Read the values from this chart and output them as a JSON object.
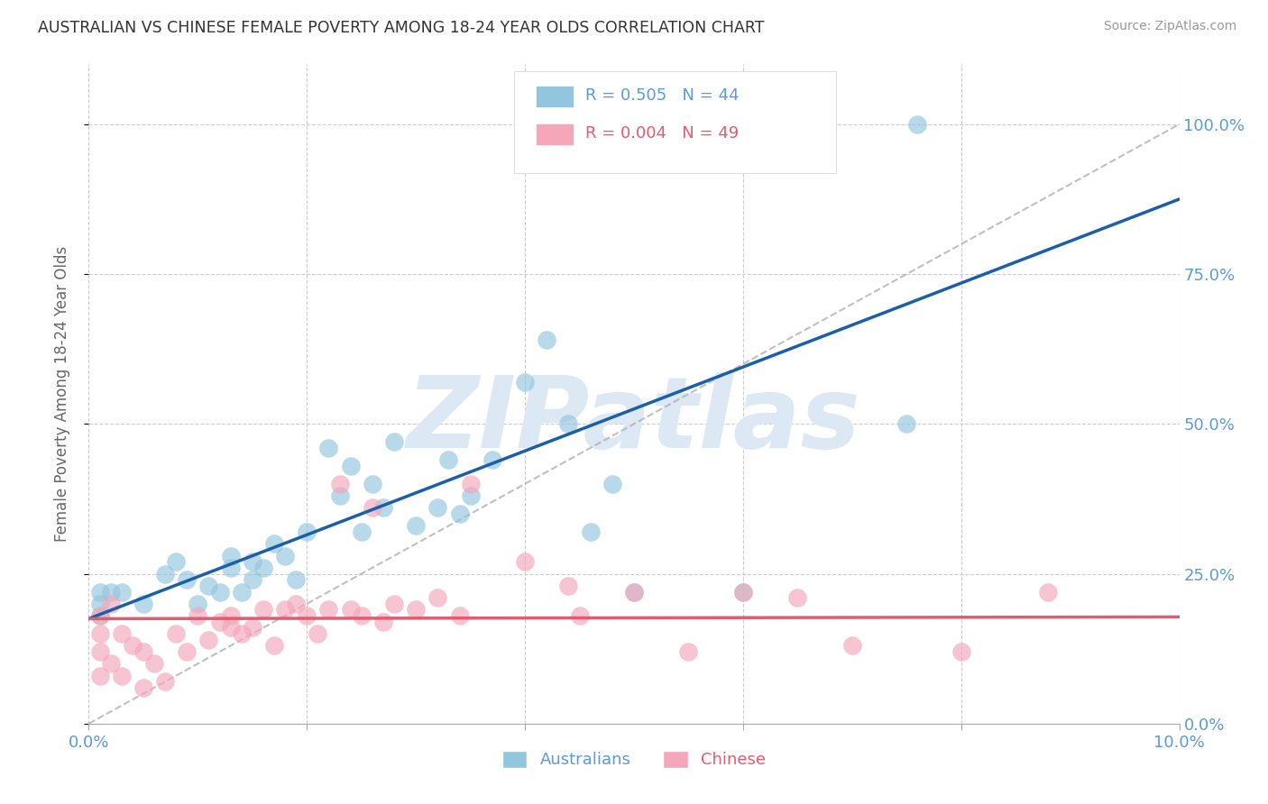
{
  "title": "AUSTRALIAN VS CHINESE FEMALE POVERTY AMONG 18-24 YEAR OLDS CORRELATION CHART",
  "source": "Source: ZipAtlas.com",
  "ylabel": "Female Poverty Among 18-24 Year Olds",
  "xlim": [
    0.0,
    0.1
  ],
  "ylim": [
    0.0,
    1.1
  ],
  "yticks_right": [
    0.0,
    0.25,
    0.5,
    0.75,
    1.0
  ],
  "ytick_labels_right": [
    "0.0%",
    "25.0%",
    "50.0%",
    "75.0%",
    "100.0%"
  ],
  "xtick_labels": [
    "0.0%",
    "",
    "",
    "",
    "",
    "10.0%"
  ],
  "title_color": "#333333",
  "source_color": "#999999",
  "axis_color": "#5b9bd5",
  "grid_color": "#cccccc",
  "watermark_text": "ZIPatlas",
  "watermark_color": "#dde8f5",
  "australian_color": "#92c5de",
  "chinese_color": "#f4a7b9",
  "trend_au_color": "#1a5fa8",
  "trend_cn_color": "#e05c6e",
  "ref_line_color": "#b0b0b0",
  "au_trend_x0": 0.0,
  "au_trend_y0": 0.175,
  "au_trend_x1": 0.1,
  "au_trend_y1": 0.875,
  "cn_trend_x0": 0.0,
  "cn_trend_y0": 0.175,
  "cn_trend_x1": 0.1,
  "cn_trend_y1": 0.178,
  "au_x": [
    0.001,
    0.001,
    0.001,
    0.002,
    0.003,
    0.005,
    0.007,
    0.008,
    0.009,
    0.01,
    0.011,
    0.012,
    0.013,
    0.013,
    0.014,
    0.015,
    0.015,
    0.016,
    0.017,
    0.018,
    0.019,
    0.02,
    0.022,
    0.023,
    0.024,
    0.025,
    0.026,
    0.027,
    0.028,
    0.03,
    0.032,
    0.033,
    0.034,
    0.035,
    0.037,
    0.04,
    0.042,
    0.044,
    0.046,
    0.048,
    0.05,
    0.06,
    0.075,
    0.076
  ],
  "au_y": [
    0.18,
    0.2,
    0.22,
    0.22,
    0.22,
    0.2,
    0.25,
    0.27,
    0.24,
    0.2,
    0.23,
    0.22,
    0.28,
    0.26,
    0.22,
    0.27,
    0.24,
    0.26,
    0.3,
    0.28,
    0.24,
    0.32,
    0.46,
    0.38,
    0.43,
    0.32,
    0.4,
    0.36,
    0.47,
    0.33,
    0.36,
    0.44,
    0.35,
    0.38,
    0.44,
    0.57,
    0.64,
    0.5,
    0.32,
    0.4,
    0.22,
    0.22,
    0.5,
    1.0
  ],
  "cn_x": [
    0.001,
    0.001,
    0.001,
    0.001,
    0.002,
    0.002,
    0.003,
    0.003,
    0.004,
    0.005,
    0.005,
    0.006,
    0.007,
    0.008,
    0.009,
    0.01,
    0.011,
    0.012,
    0.013,
    0.013,
    0.014,
    0.015,
    0.016,
    0.017,
    0.018,
    0.019,
    0.02,
    0.021,
    0.022,
    0.023,
    0.024,
    0.025,
    0.026,
    0.027,
    0.028,
    0.03,
    0.032,
    0.034,
    0.035,
    0.04,
    0.044,
    0.045,
    0.05,
    0.055,
    0.06,
    0.065,
    0.07,
    0.08,
    0.088
  ],
  "cn_y": [
    0.08,
    0.12,
    0.15,
    0.18,
    0.1,
    0.2,
    0.08,
    0.15,
    0.13,
    0.06,
    0.12,
    0.1,
    0.07,
    0.15,
    0.12,
    0.18,
    0.14,
    0.17,
    0.16,
    0.18,
    0.15,
    0.16,
    0.19,
    0.13,
    0.19,
    0.2,
    0.18,
    0.15,
    0.19,
    0.4,
    0.19,
    0.18,
    0.36,
    0.17,
    0.2,
    0.19,
    0.21,
    0.18,
    0.4,
    0.27,
    0.23,
    0.18,
    0.22,
    0.12,
    0.22,
    0.21,
    0.13,
    0.12,
    0.22
  ]
}
